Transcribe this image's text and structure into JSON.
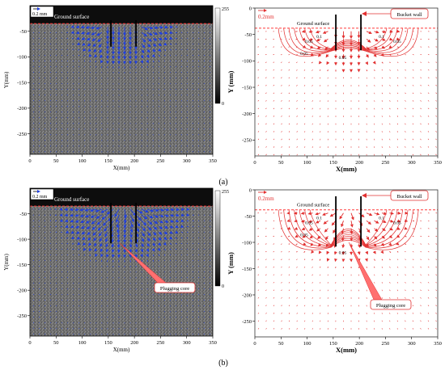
{
  "figure": {
    "caption_a": "(a)",
    "caption_b": "(b)"
  },
  "chart_data": [
    {
      "panel": "a-left",
      "type": "heatmap",
      "overlay": "vector field (blue arrows)",
      "x": {
        "label": "X(mm)",
        "range": [
          0,
          350
        ],
        "ticks": [
          0,
          50,
          100,
          150,
          200,
          250,
          300,
          350
        ]
      },
      "y": {
        "label": "Y(mm)",
        "range": [
          -290,
          0
        ],
        "ticks": [
          -50,
          -100,
          -150,
          -200,
          -250
        ]
      },
      "colorbar": {
        "max": "255",
        "min": "0",
        "colors": [
          "#ffffff",
          "#000000"
        ]
      },
      "scale_label": "0.2 mm",
      "annotations": {
        "ground": "Ground surface"
      },
      "bucket_walls_x": [
        155,
        203
      ],
      "bucket_wall_bottom_y": -80,
      "ground_y": -35,
      "arrow_color": "#1f3fe0",
      "grid": false
    },
    {
      "panel": "a-right",
      "type": "contour",
      "overlay": "vector field (red arrows)",
      "x": {
        "label": "X(mm)",
        "range": [
          0,
          350
        ],
        "ticks": [
          0,
          50,
          100,
          150,
          200,
          250,
          300,
          350
        ]
      },
      "y": {
        "label": "Y (mm)",
        "range": [
          -280,
          0
        ],
        "ticks": [
          0,
          -50,
          -100,
          -150,
          -200,
          -250
        ]
      },
      "scale_label": "0.2mm",
      "annotations": {
        "ground": "Ground surface",
        "bucket": "Bucket wall"
      },
      "contour_labels": [
        "0.05",
        "0.05",
        "0.1",
        "0.1",
        "0.05",
        "0.05"
      ],
      "bucket_walls_x": [
        155,
        203
      ],
      "bucket_wall_bottom_y": -80,
      "ground_y": -38,
      "contour_color": "#e23030",
      "grid": false
    },
    {
      "panel": "b-left",
      "type": "heatmap",
      "overlay": "vector field (blue arrows)",
      "x": {
        "label": "X(mm)",
        "range": [
          0,
          350
        ],
        "ticks": [
          0,
          50,
          100,
          150,
          200,
          250,
          300,
          350
        ]
      },
      "y": {
        "label": "Y(mm)",
        "range": [
          -290,
          0
        ],
        "ticks": [
          -50,
          -100,
          -150,
          -200,
          -250
        ]
      },
      "colorbar": {
        "max": "255",
        "min": "0",
        "colors": [
          "#ffffff",
          "#000000"
        ]
      },
      "scale_label": "0.2 mm",
      "annotations": {
        "ground": "Ground surface",
        "core": "Plugging core"
      },
      "bucket_walls_x": [
        155,
        203
      ],
      "bucket_wall_bottom_y": -108,
      "ground_y": -35,
      "arrow_color": "#1f3fe0",
      "grid": false
    },
    {
      "panel": "b-right",
      "type": "contour",
      "overlay": "vector field (red arrows)",
      "x": {
        "label": "X(mm)",
        "range": [
          0,
          350
        ],
        "ticks": [
          0,
          50,
          100,
          150,
          200,
          250,
          300,
          350
        ]
      },
      "y": {
        "label": "Y (mm)",
        "range": [
          -280,
          0
        ],
        "ticks": [
          0,
          -50,
          -100,
          -150,
          -200,
          -250
        ]
      },
      "scale_label": "0.2mm",
      "annotations": {
        "ground": "Ground surface",
        "bucket": "Bucket wall",
        "core": "Plugging core"
      },
      "contour_labels": [
        "0.05",
        "0.05",
        "0.1",
        "0.1",
        "0.05",
        "0.05"
      ],
      "bucket_walls_x": [
        155,
        203
      ],
      "bucket_wall_bottom_y": -108,
      "ground_y": -38,
      "contour_color": "#e23030",
      "grid": false
    }
  ]
}
